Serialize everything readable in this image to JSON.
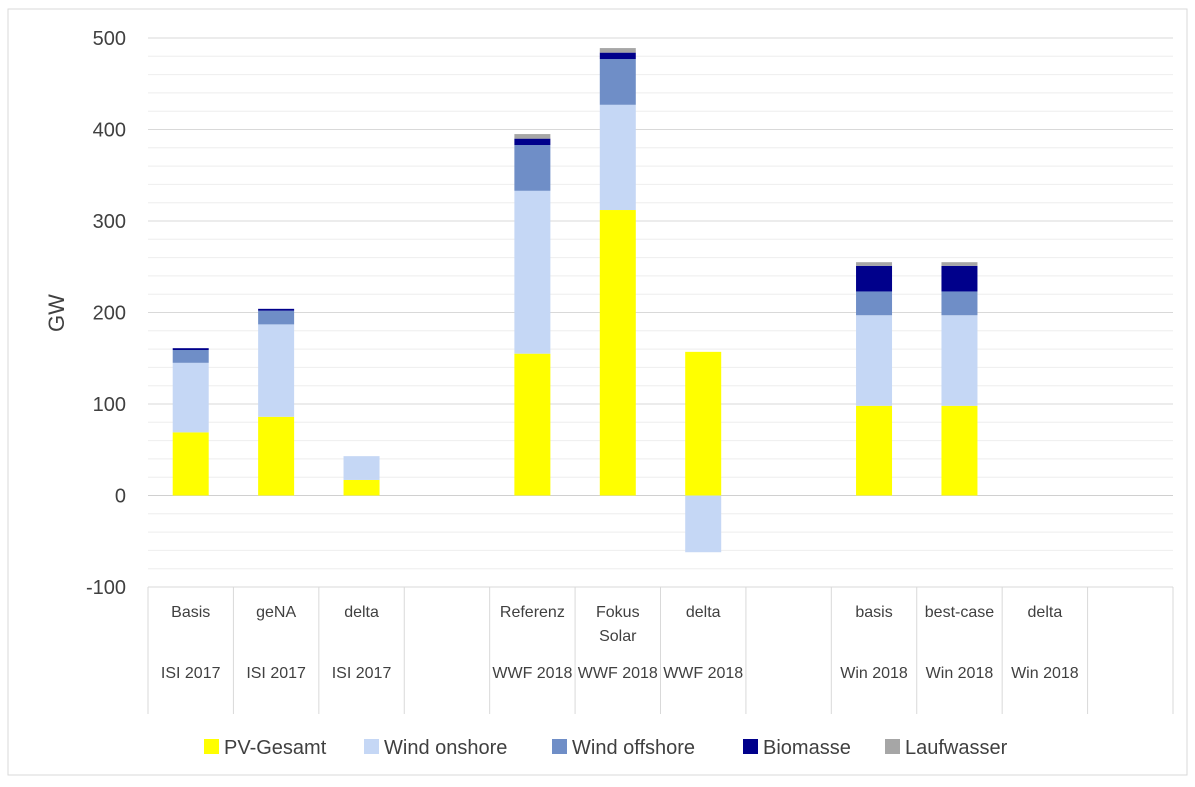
{
  "chart_data": {
    "type": "bar",
    "stacked": true,
    "xlabel": "",
    "ylabel": "GW",
    "ylim": [
      -100,
      500
    ],
    "yticks": [
      -100,
      0,
      100,
      200,
      300,
      400,
      500
    ],
    "grid": true,
    "legend_position": "bottom",
    "categories": [
      {
        "name": "Basis",
        "group": "ISI 2017"
      },
      {
        "name": "geNA",
        "group": "ISI 2017"
      },
      {
        "name": "delta",
        "group": "ISI 2017"
      },
      {
        "name": "",
        "group": ""
      },
      {
        "name": "Referenz",
        "group": "WWF 2018"
      },
      {
        "name": "Fokus Solar",
        "group": "WWF 2018"
      },
      {
        "name": "delta",
        "group": "WWF 2018"
      },
      {
        "name": "",
        "group": ""
      },
      {
        "name": "basis",
        "group": "Win 2018"
      },
      {
        "name": "best-case",
        "group": "Win 2018"
      },
      {
        "name": "delta",
        "group": "Win 2018"
      },
      {
        "name": "",
        "group": ""
      }
    ],
    "series": [
      {
        "name": "PV-Gesamt",
        "color": "#ffff00",
        "values": [
          69,
          86,
          17,
          0,
          155,
          312,
          157,
          0,
          98,
          98,
          0,
          0
        ]
      },
      {
        "name": "Wind onshore",
        "color": "#c5d7f5",
        "values": [
          76,
          101,
          26,
          0,
          178,
          115,
          -62,
          0,
          99,
          99,
          0,
          0
        ]
      },
      {
        "name": "Wind offshore",
        "color": "#6f8ec7",
        "values": [
          14,
          15,
          0,
          0,
          50,
          50,
          0,
          0,
          26,
          26,
          0,
          0
        ]
      },
      {
        "name": "Biomasse",
        "color": "#00008b",
        "values": [
          2,
          2,
          0,
          0,
          7,
          7,
          0,
          0,
          28,
          28,
          0,
          0
        ]
      },
      {
        "name": "Laufwasser",
        "color": "#a6a6a6",
        "values": [
          0,
          0,
          0,
          0,
          5,
          5,
          0,
          0,
          4,
          4,
          0,
          0
        ]
      }
    ]
  }
}
